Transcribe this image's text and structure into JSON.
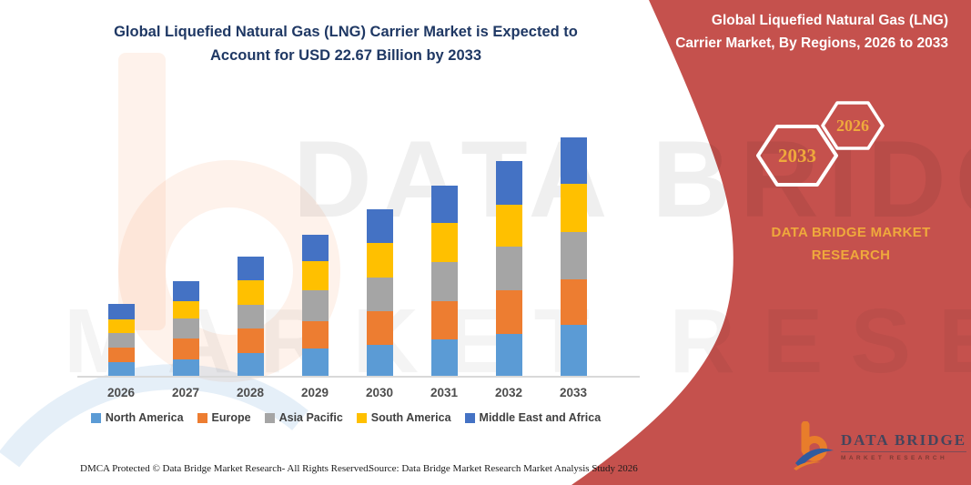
{
  "header": {
    "title": "Global Liquefied Natural Gas (LNG) Carrier Market is Expected to Account for USD 22.67 Billion by 2033"
  },
  "sidebar": {
    "title": "Global Liquefied Natural Gas (LNG) Carrier Market, By Regions, 2026 to 2033",
    "hex_back_label": "2033",
    "hex_front_label": "2026",
    "brand": "DATA BRIDGE MARKET RESEARCH",
    "accent_red": "#C5514D",
    "gold": "#EFA93C"
  },
  "logo": {
    "name": "DATA BRIDGE",
    "tagline": "MARKET RESEARCH"
  },
  "watermark": {
    "line1": "DATA BRIDGE",
    "line2": "MARKET RESEARCH"
  },
  "footer": {
    "left": "DMCA Protected © Data Bridge Market Research-  All Rights Reserved.",
    "right": "Source: Data Bridge Market Research  Market Analysis Study 2026"
  },
  "chart_data": {
    "type": "bar",
    "stacked": true,
    "title": "Global Liquefied Natural Gas (LNG) Carrier Market, By Regions, 2026 to 2033",
    "unit": "USD Billion",
    "grid": false,
    "legend_position": "bottom",
    "ylim": [
      0,
      24
    ],
    "annotation_total_2033": 22.67,
    "categories": [
      "2026",
      "2027",
      "2028",
      "2029",
      "2030",
      "2031",
      "2032",
      "2033"
    ],
    "series": [
      {
        "name": "North America",
        "color": "#5B9BD5",
        "values": [
          1.35,
          1.66,
          2.21,
          2.67,
          3.05,
          3.53,
          4.01,
          4.9
        ]
      },
      {
        "name": "Europe",
        "color": "#ED7D31",
        "values": [
          1.4,
          1.92,
          2.38,
          2.58,
          3.15,
          3.65,
          4.17,
          4.3
        ]
      },
      {
        "name": "Asia Pacific",
        "color": "#A5A5A5",
        "values": [
          1.42,
          1.93,
          2.21,
          2.96,
          3.16,
          3.67,
          4.16,
          4.5
        ]
      },
      {
        "name": "South America",
        "color": "#FFC000",
        "values": [
          1.3,
          1.66,
          2.3,
          2.7,
          3.27,
          3.68,
          3.93,
          4.55
        ]
      },
      {
        "name": "Middle East and Africa",
        "color": "#4472C4",
        "values": [
          1.39,
          1.87,
          2.29,
          2.58,
          3.25,
          3.56,
          4.16,
          4.42
        ]
      }
    ],
    "totals": [
      6.86,
      9.04,
      11.39,
      13.49,
      15.88,
      18.09,
      20.43,
      22.67
    ]
  }
}
